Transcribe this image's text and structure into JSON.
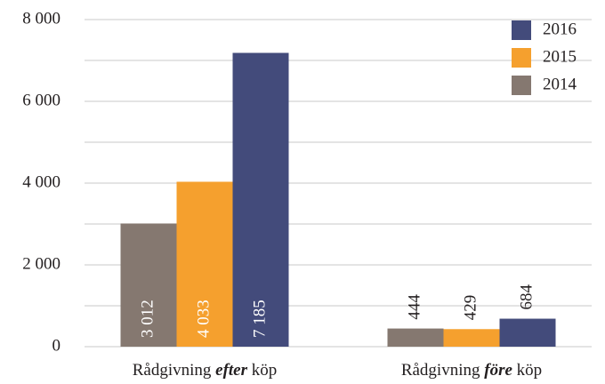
{
  "chart_data": {
    "type": "bar",
    "categories": [
      "Rådgivning efter köp",
      "Rådgivning före köp"
    ],
    "category_emphasis": [
      "efter",
      "före"
    ],
    "series": [
      {
        "name": "2014",
        "color": "#857870",
        "values": [
          3012,
          444
        ],
        "value_labels": [
          "3 012",
          "444"
        ]
      },
      {
        "name": "2015",
        "color": "#f5a02e",
        "values": [
          4033,
          429
        ],
        "value_labels": [
          "4 033",
          "429"
        ]
      },
      {
        "name": "2016",
        "color": "#434b7b",
        "values": [
          7185,
          684
        ],
        "value_labels": [
          "7 185",
          "684"
        ]
      }
    ],
    "ylim": [
      0,
      8000
    ],
    "yticks": [
      {
        "value": 0,
        "label": "0"
      },
      {
        "value": 2000,
        "label": "2 000"
      },
      {
        "value": 4000,
        "label": "4 000"
      },
      {
        "value": 6000,
        "label": "6 000"
      },
      {
        "value": 8000,
        "label": "8 000"
      }
    ],
    "minor_yticks": [
      1000,
      3000,
      5000,
      7000
    ],
    "grid": true,
    "legend": "top-right"
  }
}
